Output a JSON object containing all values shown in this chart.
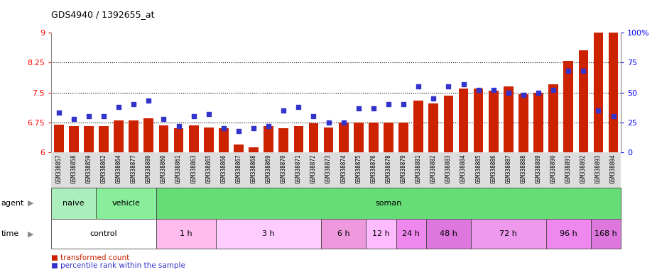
{
  "title": "GDS4940 / 1392655_at",
  "samples": [
    "GSM338857",
    "GSM338858",
    "GSM338859",
    "GSM338862",
    "GSM338864",
    "GSM338877",
    "GSM338880",
    "GSM338860",
    "GSM338861",
    "GSM338863",
    "GSM338865",
    "GSM338866",
    "GSM338867",
    "GSM338868",
    "GSM338869",
    "GSM338870",
    "GSM338871",
    "GSM338872",
    "GSM338873",
    "GSM338874",
    "GSM338875",
    "GSM338876",
    "GSM338878",
    "GSM338879",
    "GSM338881",
    "GSM338882",
    "GSM338883",
    "GSM338884",
    "GSM338885",
    "GSM338886",
    "GSM338887",
    "GSM338888",
    "GSM338889",
    "GSM338890",
    "GSM338891",
    "GSM338892",
    "GSM338893",
    "GSM338894"
  ],
  "bar_values": [
    6.7,
    6.65,
    6.65,
    6.65,
    6.8,
    6.8,
    6.85,
    6.68,
    6.6,
    6.68,
    6.63,
    6.6,
    6.2,
    6.12,
    6.65,
    6.6,
    6.65,
    6.72,
    6.62,
    6.75,
    6.75,
    6.75,
    6.75,
    6.75,
    7.3,
    7.22,
    7.42,
    7.6,
    7.6,
    7.55,
    7.65,
    7.45,
    7.5,
    7.7,
    8.3,
    8.55,
    9.0,
    9.0
  ],
  "dot_values": [
    33,
    28,
    30,
    30,
    38,
    40,
    43,
    28,
    22,
    30,
    32,
    20,
    18,
    20,
    22,
    35,
    38,
    30,
    25,
    25,
    37,
    37,
    40,
    40,
    55,
    45,
    55,
    57,
    52,
    52,
    50,
    48,
    50,
    52,
    68,
    68,
    35,
    30
  ],
  "ylim_left": [
    6.0,
    9.0
  ],
  "ylim_right": [
    0,
    100
  ],
  "yticks_left": [
    6.0,
    6.75,
    7.5,
    8.25,
    9.0
  ],
  "yticks_right": [
    0,
    25,
    50,
    75,
    100
  ],
  "ytick_labels_left": [
    "6",
    "6.75",
    "7.5",
    "8.25",
    "9"
  ],
  "ytick_labels_right": [
    "0",
    "25",
    "50",
    "75",
    "100%"
  ],
  "bar_color": "#cc2200",
  "dot_color": "#3333cc",
  "agent_groups": [
    {
      "label": "naive",
      "start": 0,
      "end": 3,
      "color": "#aaeebb"
    },
    {
      "label": "vehicle",
      "start": 3,
      "end": 7,
      "color": "#88ee99"
    },
    {
      "label": "soman",
      "start": 7,
      "end": 38,
      "color": "#66dd77"
    }
  ],
  "time_groups": [
    {
      "label": "control",
      "start": 0,
      "end": 7,
      "color": "#ffffff"
    },
    {
      "label": "1 h",
      "start": 7,
      "end": 11,
      "color": "#ffbbee"
    },
    {
      "label": "3 h",
      "start": 11,
      "end": 18,
      "color": "#ffccff"
    },
    {
      "label": "6 h",
      "start": 18,
      "end": 21,
      "color": "#ee99dd"
    },
    {
      "label": "12 h",
      "start": 21,
      "end": 23,
      "color": "#ffbbff"
    },
    {
      "label": "24 h",
      "start": 23,
      "end": 25,
      "color": "#ee88ee"
    },
    {
      "label": "48 h",
      "start": 25,
      "end": 28,
      "color": "#dd77dd"
    },
    {
      "label": "72 h",
      "start": 28,
      "end": 33,
      "color": "#ee99ee"
    },
    {
      "label": "96 h",
      "start": 33,
      "end": 36,
      "color": "#ee88ee"
    },
    {
      "label": "168 h",
      "start": 36,
      "end": 38,
      "color": "#dd77dd"
    }
  ],
  "dotted_lines": [
    6.75,
    7.5,
    8.25
  ],
  "xtick_bg": "#dddddd"
}
